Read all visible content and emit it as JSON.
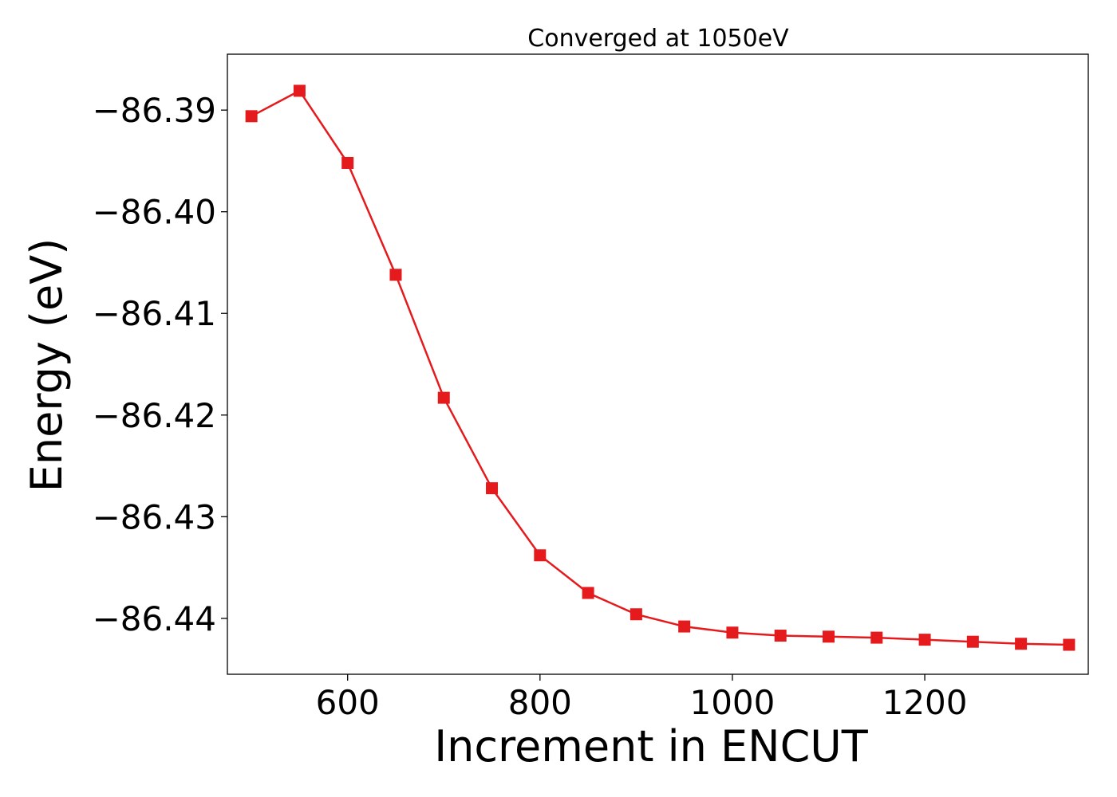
{
  "chart_data": {
    "type": "line",
    "title": "Converged at 1050eV",
    "xlabel": "Increment in ENCUT",
    "ylabel": "Energy (eV)",
    "xlim": [
      475,
      1370
    ],
    "ylim": [
      -86.4455,
      -86.3845
    ],
    "x_ticks": [
      600,
      800,
      1000,
      1200
    ],
    "x_tick_labels": [
      "600",
      "800",
      "1000",
      "1200"
    ],
    "y_ticks": [
      -86.39,
      -86.4,
      -86.41,
      -86.42,
      -86.43,
      -86.44
    ],
    "y_tick_labels": [
      "−86.39",
      "−86.40",
      "−86.41",
      "−86.42",
      "−86.43",
      "−86.44"
    ],
    "grid": false,
    "marker": "square",
    "series": [
      {
        "color": "#e41a1c",
        "x": [
          500,
          550,
          600,
          650,
          700,
          750,
          800,
          850,
          900,
          950,
          1000,
          1050,
          1100,
          1150,
          1200,
          1250,
          1300,
          1350
        ],
        "y": [
          -86.3906,
          -86.3881,
          -86.3952,
          -86.4062,
          -86.4183,
          -86.4272,
          -86.4338,
          -86.4375,
          -86.4396,
          -86.4408,
          -86.4414,
          -86.4417,
          -86.4418,
          -86.4419,
          -86.4421,
          -86.4423,
          -86.4425,
          -86.4426
        ]
      }
    ]
  }
}
